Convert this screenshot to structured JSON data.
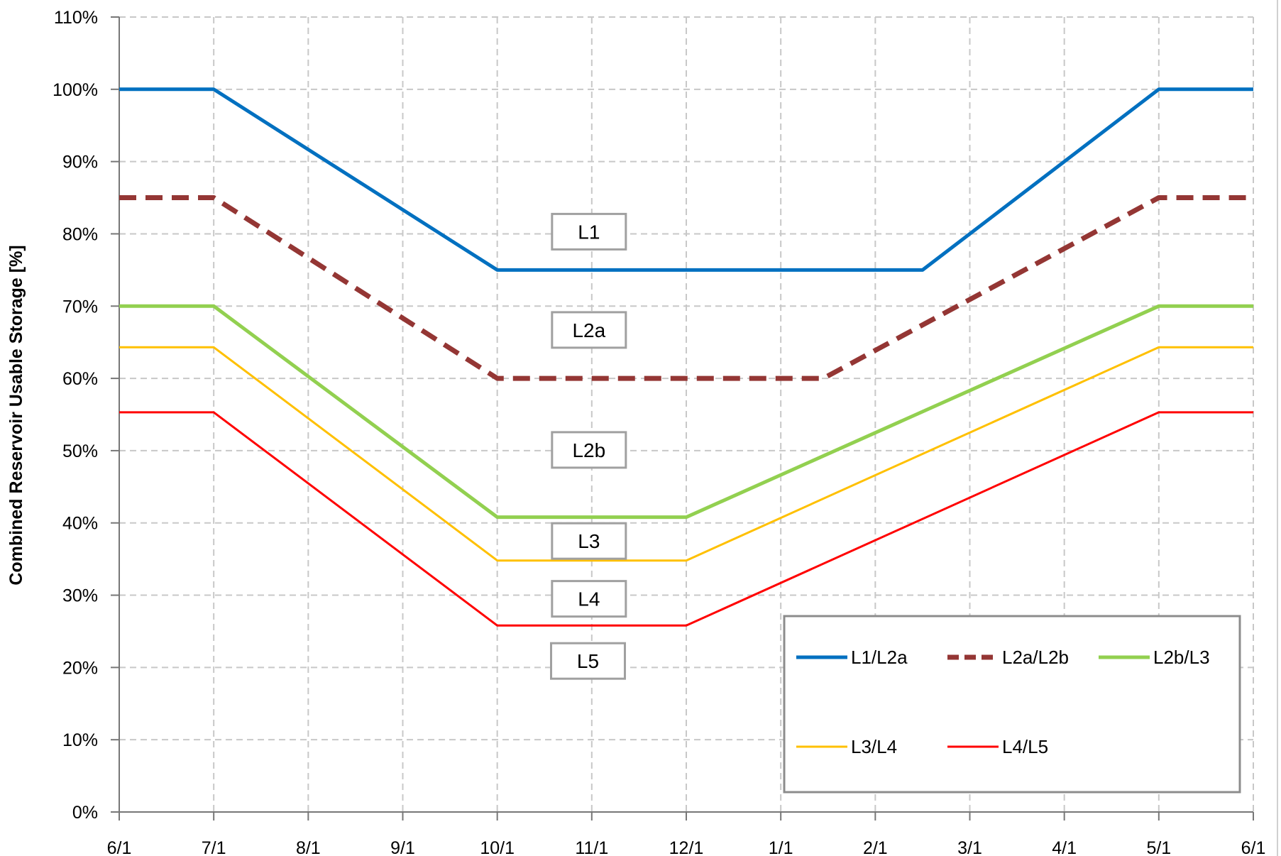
{
  "chart_data": {
    "type": "line",
    "title": "",
    "xlabel": "",
    "ylabel": "Combined Reservoir Usable Storage [%]",
    "x_ticks": [
      "6/1",
      "7/1",
      "8/1",
      "9/1",
      "10/1",
      "11/1",
      "12/1",
      "1/1",
      "2/1",
      "3/1",
      "4/1",
      "5/1",
      "6/1"
    ],
    "y_ticks": [
      "0%",
      "10%",
      "20%",
      "30%",
      "40%",
      "50%",
      "60%",
      "70%",
      "80%",
      "90%",
      "100%",
      "110%"
    ],
    "ylim": [
      0,
      110
    ],
    "xlim": [
      0,
      12
    ],
    "grid": true,
    "legend_position": "bottom-right",
    "series": [
      {
        "name": "L1/L2a",
        "color": "#0070C0",
        "style": "solid",
        "width": 5,
        "points": [
          [
            0,
            100
          ],
          [
            1,
            100
          ],
          [
            4,
            75
          ],
          [
            8.5,
            75
          ],
          [
            11,
            100
          ],
          [
            12,
            100
          ]
        ]
      },
      {
        "name": "L2a/L2b",
        "color": "#943634",
        "style": "dashed",
        "width": 7,
        "points": [
          [
            0,
            85
          ],
          [
            1,
            85
          ],
          [
            4,
            60
          ],
          [
            7.45,
            60
          ],
          [
            11,
            85
          ],
          [
            12,
            85
          ]
        ]
      },
      {
        "name": "L2b/L3",
        "color": "#92D050",
        "style": "solid",
        "width": 5,
        "points": [
          [
            0,
            70
          ],
          [
            1,
            70
          ],
          [
            4,
            40.8
          ],
          [
            6,
            40.8
          ],
          [
            11,
            70
          ],
          [
            12,
            70
          ]
        ]
      },
      {
        "name": "L3/L4",
        "color": "#FFC000",
        "style": "solid",
        "width": 3,
        "points": [
          [
            0,
            64.3
          ],
          [
            1,
            64.3
          ],
          [
            4,
            34.8
          ],
          [
            6,
            34.8
          ],
          [
            11,
            64.3
          ],
          [
            12,
            64.3
          ]
        ]
      },
      {
        "name": "L4/L5",
        "color": "#FF0000",
        "style": "solid",
        "width": 3,
        "points": [
          [
            0,
            55.3
          ],
          [
            1,
            55.3
          ],
          [
            4,
            25.8
          ],
          [
            6,
            25.8
          ],
          [
            11,
            55.3
          ],
          [
            12,
            55.3
          ]
        ]
      }
    ],
    "annotations": [
      {
        "text": "L1",
        "x": 4.97,
        "y": 80.3
      },
      {
        "text": "L2a",
        "x": 4.97,
        "y": 66.7
      },
      {
        "text": "L2b",
        "x": 4.97,
        "y": 50.1
      },
      {
        "text": "L3",
        "x": 4.97,
        "y": 37.5
      },
      {
        "text": "L4",
        "x": 4.97,
        "y": 29.5
      },
      {
        "text": "L5",
        "x": 4.96,
        "y": 20.9
      }
    ]
  }
}
